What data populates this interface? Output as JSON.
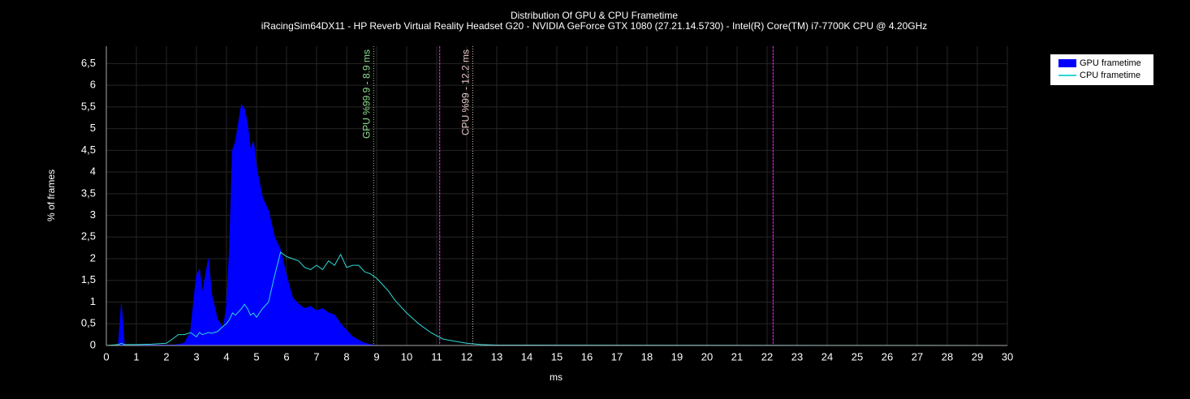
{
  "chart_data": {
    "type": "area-line",
    "title": "Distribution Of GPU & CPU Frametime",
    "subtitle": "iRacingSim64DX11 - HP Reverb Virtual Reality Headset G20 - NVIDIA GeForce GTX 1080 (27.21.14.5730) - Intel(R) Core(TM) i7-7700K CPU @ 4.20GHz",
    "x_label": "ms",
    "y_label": "% of frames",
    "xlim": [
      0,
      30
    ],
    "ylim": [
      0,
      6.9
    ],
    "xticks": [
      0,
      1,
      2,
      3,
      4,
      5,
      6,
      7,
      8,
      9,
      10,
      11,
      12,
      13,
      14,
      15,
      16,
      17,
      18,
      19,
      20,
      21,
      22,
      23,
      24,
      25,
      26,
      27,
      28,
      29,
      30
    ],
    "yticks": [
      0,
      {
        "value": 0.5,
        "label": "0,5"
      },
      1,
      {
        "value": 1.5,
        "label": "1,5"
      },
      2,
      {
        "value": 2.5,
        "label": "2,5"
      },
      3,
      {
        "value": 3.5,
        "label": "3,5"
      },
      4,
      {
        "value": 4.5,
        "label": "4,5"
      },
      5,
      {
        "value": 5.5,
        "label": "5,5"
      },
      6,
      {
        "value": 6.5,
        "label": "6,5"
      }
    ],
    "grid": true,
    "legend": "top-right",
    "x": [
      0,
      0.4,
      0.5,
      0.6,
      1,
      1.5,
      2,
      2.2,
      2.4,
      2.6,
      2.8,
      3.0,
      3.1,
      3.2,
      3.4,
      3.5,
      3.7,
      3.9,
      4.0,
      4.1,
      4.2,
      4.3,
      4.5,
      4.6,
      4.7,
      4.8,
      4.9,
      5.0,
      5.2,
      5.4,
      5.6,
      5.8,
      6.0,
      6.2,
      6.4,
      6.6,
      6.8,
      7.0,
      7.2,
      7.4,
      7.6,
      7.8,
      8.0,
      8.2,
      8.4,
      8.6,
      8.8,
      9.0,
      9.2,
      9.4,
      9.6,
      9.8,
      10.0,
      10.4,
      10.8,
      11.2,
      11.6,
      12.0,
      12.5,
      13,
      30
    ],
    "series": [
      {
        "name": "GPU frametime",
        "kind": "area",
        "color": "#0000ff",
        "values": [
          0,
          0,
          0.95,
          0,
          0.01,
          0.01,
          0.01,
          0.01,
          0.02,
          0.05,
          0.3,
          1.6,
          1.75,
          1.2,
          2.0,
          1.2,
          0.6,
          0.4,
          0.9,
          2.2,
          4.5,
          4.7,
          5.55,
          5.45,
          5.1,
          4.5,
          4.7,
          4.1,
          3.4,
          3.1,
          2.5,
          2.2,
          1.6,
          1.1,
          0.95,
          0.85,
          0.9,
          0.8,
          0.85,
          0.75,
          0.7,
          0.5,
          0.35,
          0.2,
          0.12,
          0.05,
          0.02,
          0,
          0,
          0,
          0,
          0,
          0,
          0,
          0,
          0,
          0,
          0,
          0,
          0,
          0
        ]
      },
      {
        "name": "CPU frametime",
        "kind": "line",
        "color": "#2fd8d8",
        "values": [
          0,
          0.02,
          0.05,
          0.02,
          0.02,
          0.03,
          0.05,
          0.15,
          0.25,
          0.25,
          0.3,
          0.2,
          0.3,
          0.25,
          0.3,
          0.28,
          0.32,
          0.45,
          0.5,
          0.6,
          0.75,
          0.7,
          0.85,
          0.95,
          0.85,
          0.7,
          0.75,
          0.65,
          0.85,
          1.0,
          1.6,
          2.15,
          2.05,
          2.0,
          1.95,
          1.8,
          1.75,
          1.85,
          1.75,
          1.95,
          1.85,
          2.1,
          1.8,
          1.85,
          1.85,
          1.7,
          1.65,
          1.55,
          1.4,
          1.25,
          1.05,
          0.9,
          0.75,
          0.5,
          0.3,
          0.15,
          0.1,
          0.05,
          0.02,
          0.01,
          0
        ]
      }
    ],
    "markers": [
      {
        "x": 8.9,
        "label": "GPU %99.9 - 8.9 ms",
        "color": "#8fe08f"
      },
      {
        "x": 12.2,
        "label": "CPU %99 - 12.2 ms",
        "color": "#e8c8c8"
      }
    ],
    "reference_lines": [
      {
        "x": 11.1,
        "color": "#ff22ff"
      },
      {
        "x": 22.2,
        "color": "#ff22ff"
      }
    ]
  }
}
